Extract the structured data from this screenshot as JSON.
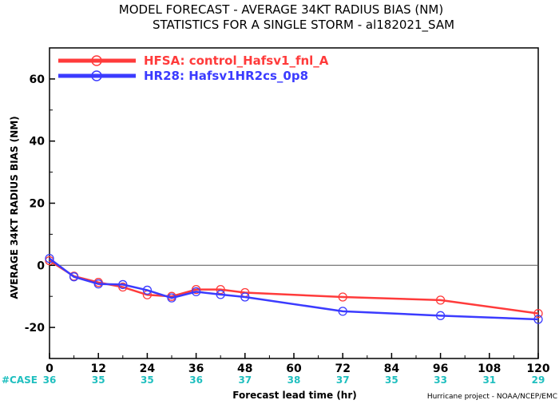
{
  "chart_data": {
    "type": "line",
    "title": "MODEL FORECAST - AVERAGE 34KT RADIUS BIAS (NM)",
    "subtitle": "STATISTICS FOR A SINGLE STORM - al182021_SAM",
    "xlabel": "Forecast lead time (hr)",
    "ylabel": "AVERAGE 34KT RADIUS BIAS (NM)",
    "xlim": [
      0,
      120
    ],
    "ylim": [
      -30,
      70
    ],
    "x_ticks": [
      0,
      12,
      24,
      36,
      48,
      60,
      72,
      84,
      96,
      108,
      120
    ],
    "y_ticks": [
      -20,
      0,
      20,
      40,
      60
    ],
    "zero_line": true,
    "legend_position": "top-left",
    "series": [
      {
        "name": "HFSA: control_Hafsv1_fnl_A",
        "color": "#ff3b3b",
        "x": [
          0,
          6,
          12,
          18,
          24,
          30,
          36,
          42,
          48,
          72,
          96,
          120
        ],
        "y": [
          1.5,
          -3.5,
          -5.5,
          -7,
          -9.5,
          -10,
          -7.8,
          -7.8,
          -8.8,
          -10.2,
          -11.2,
          -15.5
        ]
      },
      {
        "name": "HR28: Hafsv1HR2cs_0p8",
        "color": "#3b3bff",
        "x": [
          0,
          6,
          12,
          18,
          24,
          30,
          36,
          42,
          48,
          72,
          96,
          120
        ],
        "y": [
          2.2,
          -3.7,
          -6,
          -6.2,
          -8,
          -10.5,
          -8.5,
          -9.4,
          -10.2,
          -14.8,
          -16.2,
          -17.4
        ]
      }
    ],
    "case_label": "#CASE",
    "case_x": [
      0,
      12,
      24,
      36,
      48,
      60,
      72,
      84,
      96,
      108,
      120
    ],
    "case_counts": [
      "36",
      "35",
      "35",
      "36",
      "37",
      "38",
      "37",
      "35",
      "33",
      "31",
      "29"
    ],
    "credit": "Hurricane project - NOAA/NCEP/EMC"
  }
}
